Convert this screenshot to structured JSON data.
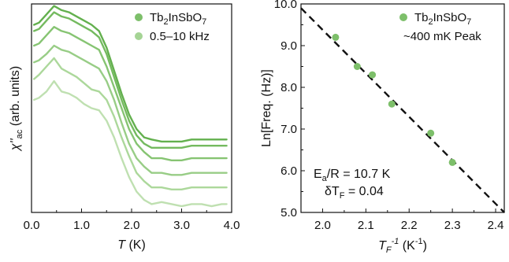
{
  "chart_data": [
    {
      "type": "line",
      "panel": "left",
      "xlabel": "T (K)",
      "ylabel": "χ''ac (arb. units)",
      "xlabel_parts": {
        "var": "T",
        "unit": " (K)"
      },
      "ylabel_parts": {
        "main": "χ''",
        "sub": "ac",
        "rest": " (arb. units)"
      },
      "xlim": [
        0.0,
        4.0
      ],
      "ylim": [
        0,
        1
      ],
      "x_ticks": [
        0.0,
        1.0,
        2.0,
        3.0,
        4.0
      ],
      "x_tick_labels": [
        "0.0",
        "1.0",
        "2.0",
        "3.0",
        "4.0"
      ],
      "y_tick_labels_shown": false,
      "legend_position": "top-right",
      "legend": [
        {
          "label_parts": {
            "base": "Tb",
            "s1": "2",
            "mid": "InSbO",
            "s2": "7"
          },
          "color": "#7dbf6a"
        },
        {
          "label_parts": {
            "base": "0.5–10 kHz",
            "s1": "",
            "mid": "",
            "s2": ""
          },
          "color": "#a5d495"
        }
      ],
      "x": [
        0.05,
        0.15,
        0.3,
        0.45,
        0.6,
        0.75,
        0.9,
        1.05,
        1.2,
        1.35,
        1.5,
        1.65,
        1.8,
        1.95,
        2.1,
        2.25,
        2.4,
        2.6,
        2.8,
        3.0,
        3.2,
        3.4,
        3.6,
        3.8,
        3.9
      ],
      "series": [
        {
          "color": "#bfe0b1",
          "values": [
            0.54,
            0.55,
            0.58,
            0.63,
            0.58,
            0.57,
            0.55,
            0.52,
            0.5,
            0.49,
            0.44,
            0.36,
            0.26,
            0.17,
            0.1,
            0.06,
            0.04,
            0.05,
            0.04,
            0.03,
            0.04,
            0.04,
            0.03,
            0.04,
            0.04
          ]
        },
        {
          "color": "#acd89b",
          "values": [
            0.64,
            0.66,
            0.7,
            0.74,
            0.69,
            0.67,
            0.65,
            0.62,
            0.59,
            0.58,
            0.54,
            0.46,
            0.36,
            0.27,
            0.19,
            0.15,
            0.12,
            0.12,
            0.11,
            0.11,
            0.12,
            0.12,
            0.12,
            0.12,
            0.12
          ]
        },
        {
          "color": "#98cd86",
          "values": [
            0.72,
            0.73,
            0.76,
            0.8,
            0.78,
            0.77,
            0.75,
            0.73,
            0.71,
            0.69,
            0.63,
            0.54,
            0.43,
            0.33,
            0.26,
            0.22,
            0.19,
            0.19,
            0.18,
            0.18,
            0.19,
            0.19,
            0.19,
            0.19,
            0.19
          ]
        },
        {
          "color": "#86c472",
          "values": [
            0.8,
            0.81,
            0.85,
            0.89,
            0.87,
            0.86,
            0.84,
            0.82,
            0.8,
            0.78,
            0.7,
            0.6,
            0.5,
            0.4,
            0.33,
            0.29,
            0.26,
            0.26,
            0.25,
            0.25,
            0.26,
            0.26,
            0.26,
            0.26,
            0.26
          ]
        },
        {
          "color": "#74ba5f",
          "values": [
            0.87,
            0.88,
            0.92,
            0.96,
            0.94,
            0.93,
            0.91,
            0.89,
            0.87,
            0.84,
            0.76,
            0.65,
            0.54,
            0.44,
            0.37,
            0.33,
            0.31,
            0.31,
            0.31,
            0.31,
            0.32,
            0.32,
            0.32,
            0.32,
            0.32
          ]
        },
        {
          "color": "#63b04e",
          "values": [
            0.9,
            0.91,
            0.95,
            0.99,
            0.97,
            0.96,
            0.94,
            0.92,
            0.9,
            0.87,
            0.79,
            0.68,
            0.57,
            0.47,
            0.4,
            0.36,
            0.35,
            0.34,
            0.34,
            0.34,
            0.35,
            0.35,
            0.35,
            0.35,
            0.35
          ]
        }
      ]
    },
    {
      "type": "scatter",
      "panel": "right",
      "xlabel": "TF-1 (K-1)",
      "ylabel": "Ln[Freq. (Hz)]",
      "xlabel_parts": {
        "var": "T",
        "sub": "F",
        "sup": "-1",
        "unit": " (K",
        "unit_sup": "-1",
        "close": ")"
      },
      "xlim": [
        1.95,
        2.42
      ],
      "ylim": [
        5.0,
        10.0
      ],
      "x_ticks": [
        2.0,
        2.1,
        2.2,
        2.3,
        2.4
      ],
      "x_tick_labels": [
        "2.0",
        "2.1",
        "2.2",
        "2.3",
        "2.4"
      ],
      "y_ticks": [
        5.0,
        6.0,
        7.0,
        8.0,
        9.0,
        10.0
      ],
      "y_tick_labels": [
        "5.0",
        "6.0",
        "7.0",
        "8.0",
        "9.0",
        "10.0"
      ],
      "legend_position": "top-right",
      "legend": [
        {
          "label_parts": {
            "base": "Tb",
            "s1": "2",
            "mid": "InSbO",
            "s2": "7"
          },
          "color": "#7dbf6a"
        },
        {
          "label_parts": {
            "base": "~400 mK Peak",
            "s1": "",
            "mid": "",
            "s2": ""
          },
          "color": ""
        }
      ],
      "points": {
        "color": "#7dbf6a",
        "x": [
          2.03,
          2.08,
          2.115,
          2.16,
          2.25,
          2.3
        ],
        "y": [
          9.2,
          8.5,
          8.3,
          7.6,
          6.9,
          6.2
        ]
      },
      "fit": {
        "x": [
          1.95,
          2.42
        ],
        "y": [
          9.9,
          5.0
        ],
        "style": "dashed",
        "color": "#111111"
      },
      "annotations": [
        {
          "parts": {
            "a": "E",
            "sub": "a",
            "b": "/R = 10.7 K"
          }
        },
        {
          "parts": {
            "a": "δT",
            "sub": "F",
            "b": " = 0.04"
          }
        }
      ]
    }
  ]
}
